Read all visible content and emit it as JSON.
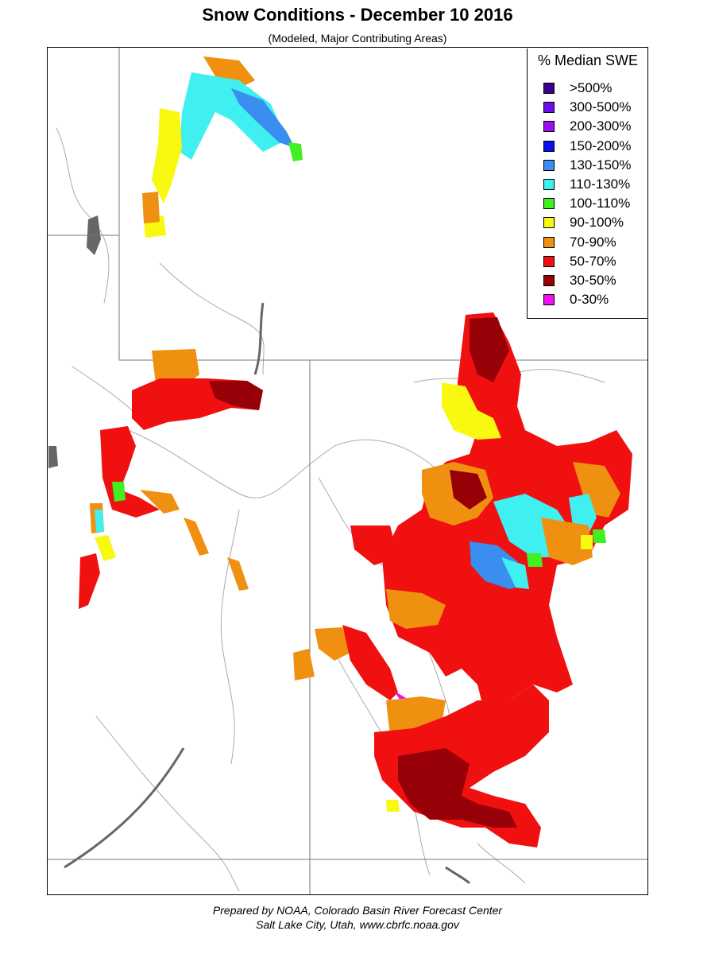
{
  "title": "Snow Conditions - December 10 2016",
  "subtitle": "(Modeled, Major Contributing Areas)",
  "legend": {
    "title": "% Median SWE",
    "items": [
      {
        "label": ">500%",
        "color": "#3a0090"
      },
      {
        "label": "300-500%",
        "color": "#6a10e8"
      },
      {
        "label": "200-300%",
        "color": "#9a10f0"
      },
      {
        "label": "150-200%",
        "color": "#0a10f0"
      },
      {
        "label": "130-150%",
        "color": "#3a8ef0"
      },
      {
        "label": "110-130%",
        "color": "#40f0f0"
      },
      {
        "label": "100-110%",
        "color": "#40f020"
      },
      {
        "label": "90-100%",
        "color": "#f8f810"
      },
      {
        "label": "70-90%",
        "color": "#f09010"
      },
      {
        "label": "50-70%",
        "color": "#f01010"
      },
      {
        "label": "30-50%",
        "color": "#980008"
      },
      {
        "label": "0-30%",
        "color": "#f010f0"
      }
    ]
  },
  "footer": {
    "line1": "Prepared by NOAA, Colorado Basin River Forecast Center",
    "line2": "Salt Lake City, Utah, www.cbrfc.noaa.gov"
  }
}
